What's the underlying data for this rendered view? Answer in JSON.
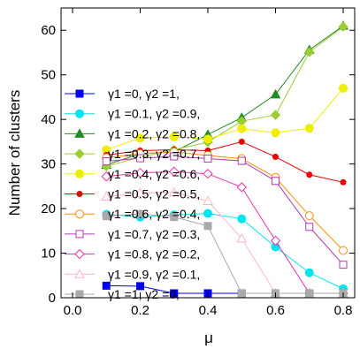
{
  "chart_data": {
    "type": "line",
    "title": "",
    "xlabel": "μ",
    "ylabel": "Number of clusters",
    "xlim": [
      0.0,
      0.8
    ],
    "ylim": [
      0,
      65
    ],
    "xticks": [
      0.0,
      0.2,
      0.4,
      0.6,
      0.8
    ],
    "yticks": [
      0,
      10,
      20,
      30,
      40,
      50,
      60
    ],
    "xtick_labels": [
      "0.0",
      "0.2",
      "0.4",
      "0.6",
      "0.8"
    ],
    "ytick_labels": [
      "0",
      "10",
      "20",
      "30",
      "40",
      "50",
      "60"
    ],
    "grid": false,
    "legend_position": "left",
    "x": [
      0.1,
      0.2,
      0.3,
      0.4,
      0.5,
      0.6,
      0.7,
      0.8
    ],
    "series": [
      {
        "name": "γ1 =0, γ2 =1,",
        "color": "#0000ee",
        "marker": "square-filled",
        "values": [
          2.7,
          2.6,
          1.0,
          1.0,
          1.0,
          1.0,
          1.0,
          1.0
        ]
      },
      {
        "name": "γ1 =0.1, γ2 =0.9,",
        "color": "#00e5ee",
        "marker": "circle-filled",
        "values": [
          18.7,
          18.1,
          18.6,
          18.9,
          17.7,
          11.4,
          5.6,
          2.0
        ]
      },
      {
        "name": "γ1 =0.2, γ2 =0.8,",
        "color": "#228b22",
        "marker": "triangle-filled",
        "values": [
          29.8,
          32.3,
          32.7,
          36.6,
          40.4,
          45.6,
          55.6,
          61.0
        ]
      },
      {
        "name": "γ1 =0.3, γ2 =0.7,",
        "color": "#9acd32",
        "marker": "diamond-filled",
        "values": [
          29.5,
          31.5,
          33.2,
          34.9,
          39.6,
          41.0,
          55.1,
          60.8
        ]
      },
      {
        "name": "γ1 =0.4, γ2 =0.6,",
        "color": "#eeee00",
        "marker": "circle-filled",
        "values": [
          33.2,
          35.8,
          36.1,
          35.6,
          37.9,
          37.0,
          38.0,
          47.0
        ]
      },
      {
        "name": "γ1 =0.5, γ2 =0.5,",
        "color": "#ee0000",
        "marker": "circle-small",
        "values": [
          32.0,
          33.0,
          33.2,
          33.0,
          35.0,
          31.6,
          27.6,
          25.9
        ]
      },
      {
        "name": "γ1 =0.6, γ2 =0.4,",
        "color": "#ff8c00",
        "marker": "circle-open",
        "values": [
          31.4,
          32.3,
          32.7,
          31.9,
          31.2,
          27.0,
          18.4,
          10.6
        ]
      },
      {
        "name": "γ1 =0.7, γ2 =0.3,",
        "color": "#b23ab2",
        "marker": "square-open",
        "values": [
          30.6,
          31.3,
          31.7,
          31.2,
          30.7,
          26.2,
          15.9,
          7.4
        ]
      },
      {
        "name": "γ1 =0.8, γ2 =0.2,",
        "color": "#ee30a7",
        "marker": "diamond-open",
        "values": [
          27.2,
          28.0,
          28.3,
          27.8,
          24.8,
          12.8,
          1.0,
          1.0
        ]
      },
      {
        "name": "γ1 =0.9, γ2 =0.1,",
        "color": "#ffb6c1",
        "marker": "triangle-open",
        "values": [
          22.7,
          23.5,
          23.6,
          21.7,
          13.3,
          1.0,
          1.0,
          1.0
        ]
      },
      {
        "name": "γ1 =1, γ2 =0,",
        "color": "#aaaaaa",
        "marker": "square-filled",
        "values": [
          18.3,
          18.8,
          18.1,
          16.1,
          1.0,
          1.0,
          1.0,
          1.0
        ]
      }
    ]
  }
}
